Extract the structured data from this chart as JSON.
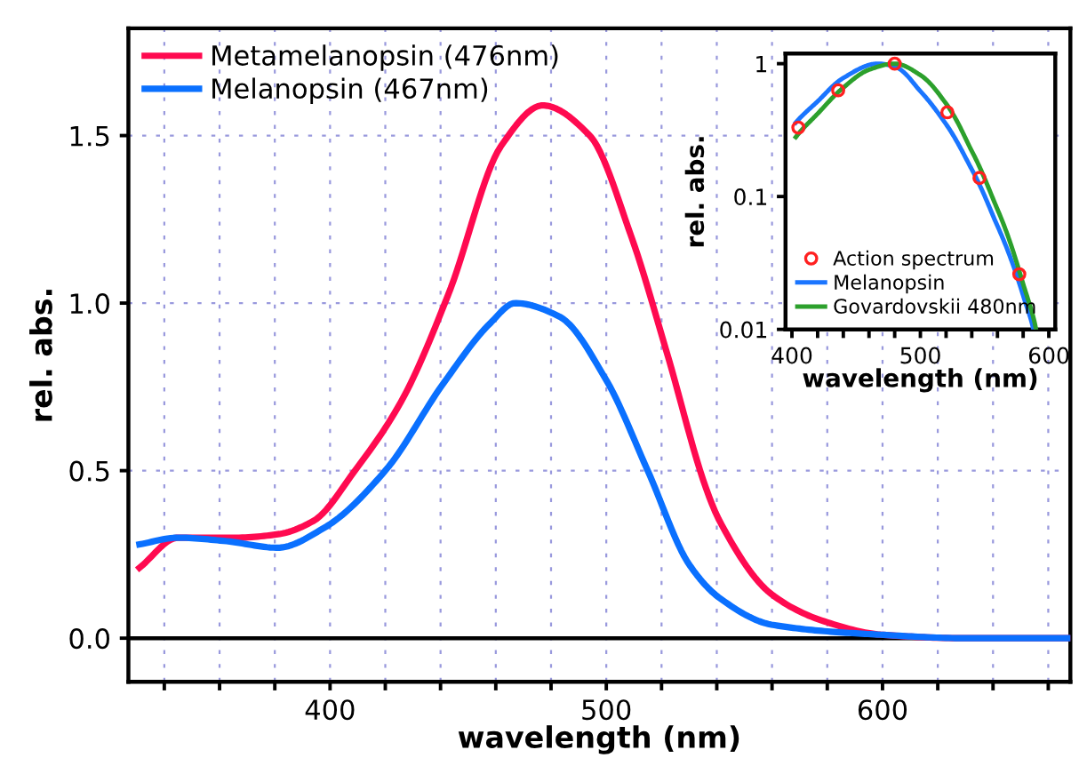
{
  "chart_data": [
    {
      "type": "line",
      "xlabel": "wavelength (nm)",
      "ylabel": "rel. abs.",
      "xlim": [
        327,
        668
      ],
      "ylim": [
        -0.13,
        1.82
      ],
      "xticks": [
        {
          "value": 340,
          "label": null
        },
        {
          "value": 360,
          "label": null
        },
        {
          "value": 380,
          "label": null
        },
        400,
        {
          "value": 420,
          "label": null
        },
        {
          "value": 440,
          "label": null
        },
        {
          "value": 460,
          "label": null
        },
        {
          "value": 480,
          "label": null
        },
        500,
        {
          "value": 520,
          "label": null
        },
        {
          "value": 540,
          "label": null
        },
        {
          "value": 560,
          "label": null
        },
        {
          "value": 580,
          "label": null
        },
        600,
        {
          "value": 620,
          "label": null
        },
        {
          "value": 640,
          "label": null
        },
        {
          "value": 660,
          "label": null
        }
      ],
      "yticks": [
        {
          "value": 0,
          "label": "0.0"
        },
        {
          "value": 0.5,
          "label": "0.5"
        },
        {
          "value": 1.0,
          "label": "1.0"
        },
        {
          "value": 1.5,
          "label": "1.5"
        }
      ],
      "grid": true,
      "legend": "top left",
      "ref_lines": [
        {
          "axis": "y",
          "value": 0,
          "color": "#000000"
        }
      ],
      "series": [
        {
          "name": "Metamelanopsin (476nm)",
          "color": "#ff0a50",
          "x": [
            331,
            345,
            366,
            381,
            394,
            409,
            426,
            443,
            462,
            477,
            494,
            509,
            522,
            536,
            541,
            560,
            579,
            600,
            630,
            668
          ],
          "values": [
            0.21,
            0.3,
            0.3,
            0.31,
            0.35,
            0.5,
            0.71,
            1.03,
            1.47,
            1.59,
            1.5,
            1.2,
            0.85,
            0.45,
            0.35,
            0.13,
            0.05,
            0.01,
            0.0,
            0.0
          ]
        },
        {
          "name": "Melanopsin (467nm)",
          "color": "#0a70ff",
          "x": [
            331,
            345,
            362,
            381,
            398,
            420,
            441,
            458,
            467,
            483,
            500,
            515,
            530,
            541,
            560,
            600,
            630,
            668
          ],
          "values": [
            0.28,
            0.3,
            0.29,
            0.27,
            0.33,
            0.5,
            0.76,
            0.94,
            1.0,
            0.96,
            0.77,
            0.5,
            0.22,
            0.12,
            0.04,
            0.01,
            0.0,
            0.0
          ]
        }
      ]
    },
    {
      "type": "line",
      "xlabel": "wavelength (nm)",
      "ylabel": "rel. abs.",
      "log": "y",
      "xlim": [
        395,
        605
      ],
      "ylim": [
        0.01,
        1.19
      ],
      "xticks": [
        400,
        {
          "value": 420,
          "label": null
        },
        {
          "value": 440,
          "label": null
        },
        {
          "value": 460,
          "label": null
        },
        {
          "value": 480,
          "label": null
        },
        500,
        {
          "value": 520,
          "label": null
        },
        {
          "value": 540,
          "label": null
        },
        {
          "value": 560,
          "label": null
        },
        {
          "value": 580,
          "label": null
        },
        600
      ],
      "yticks": [
        0.01,
        0.1,
        1
      ],
      "grid": false,
      "legend": "bottom left",
      "series": [
        {
          "name": "Action spectrum",
          "type": "scatter",
          "marker": "circle",
          "color": "#ff2020",
          "x": [
            405,
            436,
            480,
            521,
            546,
            577
          ],
          "values": [
            0.33,
            0.63,
            1.0,
            0.43,
            0.138,
            0.026
          ]
        },
        {
          "name": "Melanopsin",
          "color": "#1a75ff",
          "x": [
            403,
            420,
            440,
            467,
            480,
            500,
            520,
            540,
            560,
            580,
            588
          ],
          "values": [
            0.36,
            0.52,
            0.78,
            1.0,
            0.95,
            0.62,
            0.35,
            0.16,
            0.06,
            0.018,
            0.01
          ]
        },
        {
          "name": "Govardovskii 480nm",
          "color": "#2ca02c",
          "x": [
            403,
            420,
            440,
            460,
            480,
            500,
            520,
            540,
            560,
            580,
            590
          ],
          "values": [
            0.28,
            0.42,
            0.66,
            0.9,
            1.0,
            0.82,
            0.5,
            0.22,
            0.08,
            0.022,
            0.01
          ]
        }
      ]
    }
  ]
}
